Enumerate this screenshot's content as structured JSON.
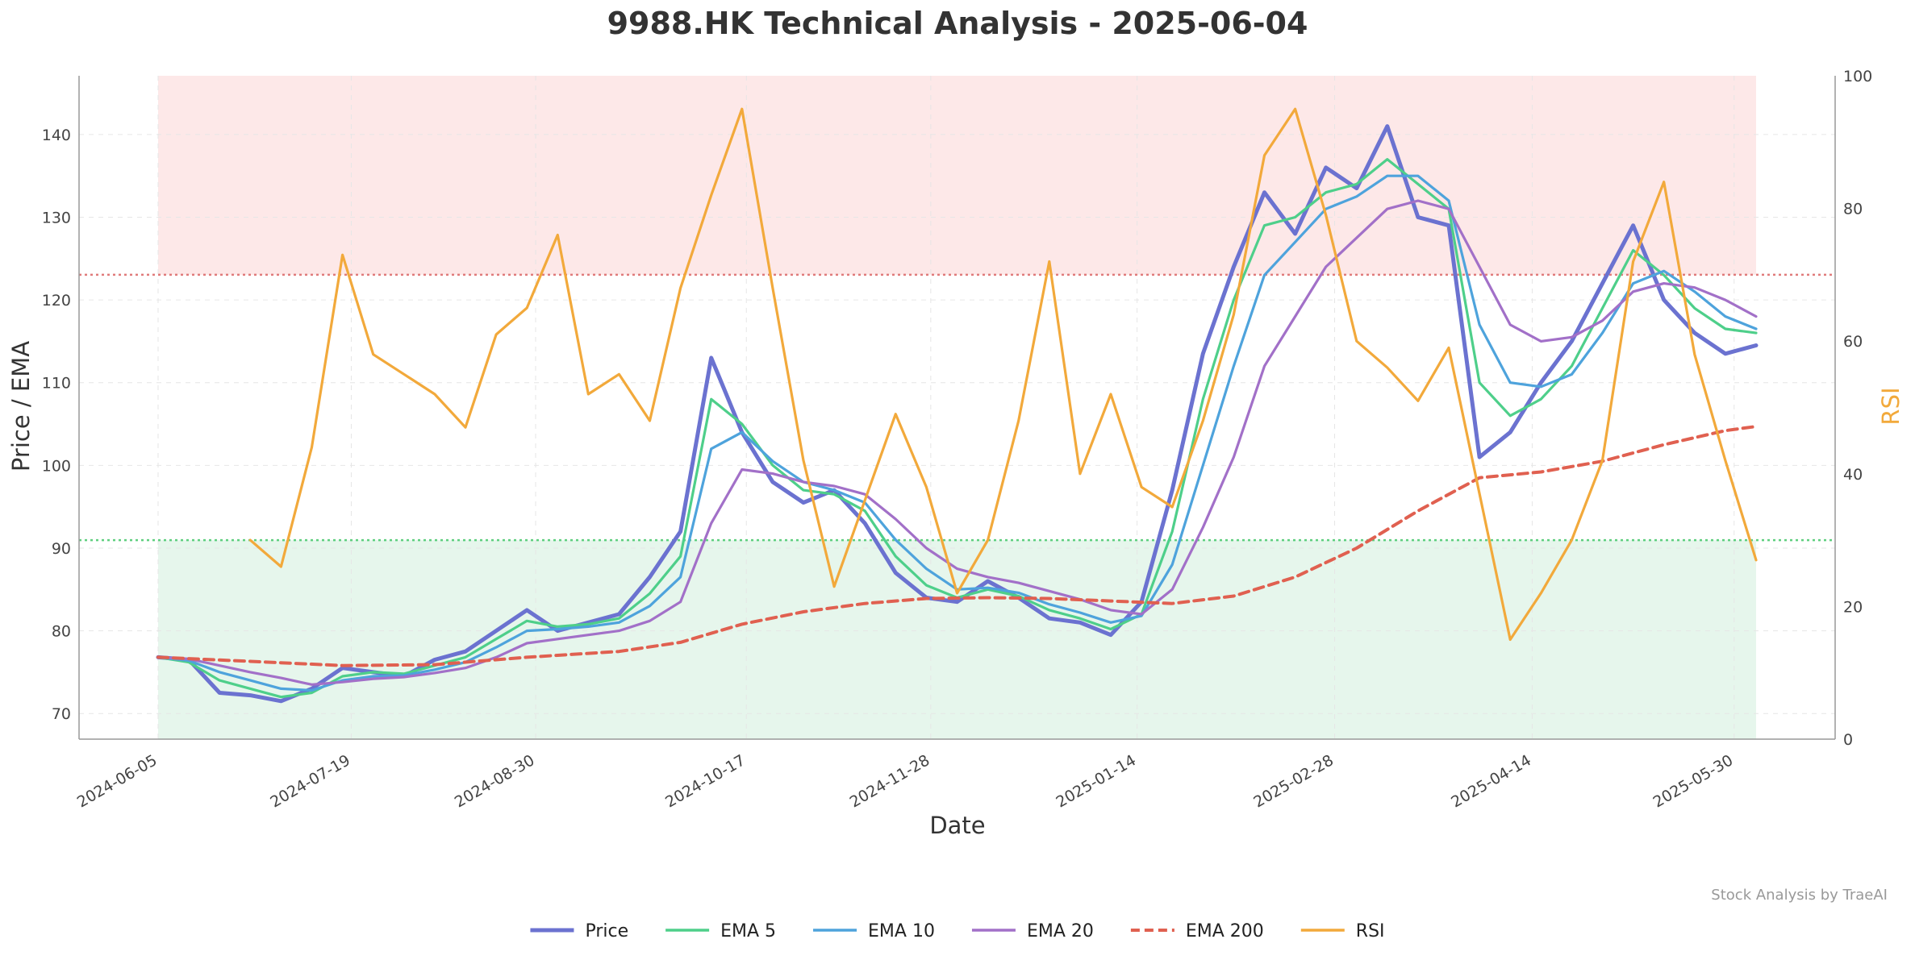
{
  "chart_data": {
    "type": "line",
    "title": "9988.HK Technical Analysis - 2025-06-04",
    "xlabel": "Date",
    "ylabel": "Price / EMA",
    "y2label": "RSI",
    "ylim": [
      66.9,
      147.1
    ],
    "y2lim": [
      0,
      100
    ],
    "yticks": [
      70,
      80,
      90,
      100,
      110,
      120,
      130,
      140
    ],
    "y2ticks": [
      0,
      20,
      40,
      60,
      80,
      100
    ],
    "x_date_range": [
      "2024-06-05",
      "2025-06-04"
    ],
    "xticks": [
      "2024-06-05",
      "2024-07-19",
      "2024-08-30",
      "2024-10-17",
      "2024-11-28",
      "2025-01-14",
      "2025-02-28",
      "2025-04-14",
      "2025-05-30"
    ],
    "rsi_overbought": 70,
    "rsi_oversold": 30,
    "grid": true,
    "legend_position": "bottom-center",
    "watermark": "Stock Analysis by TraeAI",
    "colors": {
      "Price": "#6b72d0",
      "EMA 5": "#4ecf8a",
      "EMA 10": "#4ea3dc",
      "EMA 20": "#a270c8",
      "EMA 200": "#e06050",
      "RSI": "#f2a93b",
      "overbought_zone": "#fde8e8",
      "oversold_zone": "#e6f6ec",
      "overbought_line": "#e07b7b",
      "oversold_line": "#5fcf7f"
    },
    "series": [
      {
        "name": "Price",
        "axis": "left",
        "x": [
          "2024-06-05",
          "2024-06-12",
          "2024-06-19",
          "2024-06-26",
          "2024-07-03",
          "2024-07-10",
          "2024-07-17",
          "2024-07-24",
          "2024-07-31",
          "2024-08-07",
          "2024-08-14",
          "2024-08-21",
          "2024-08-28",
          "2024-09-04",
          "2024-09-11",
          "2024-09-18",
          "2024-09-25",
          "2024-10-02",
          "2024-10-09",
          "2024-10-16",
          "2024-10-23",
          "2024-10-30",
          "2024-11-06",
          "2024-11-13",
          "2024-11-20",
          "2024-11-27",
          "2024-12-04",
          "2024-12-11",
          "2024-12-18",
          "2024-12-25",
          "2025-01-01",
          "2025-01-08",
          "2025-01-15",
          "2025-01-22",
          "2025-01-29",
          "2025-02-05",
          "2025-02-12",
          "2025-02-19",
          "2025-02-26",
          "2025-03-05",
          "2025-03-12",
          "2025-03-19",
          "2025-03-26",
          "2025-04-02",
          "2025-04-09",
          "2025-04-16",
          "2025-04-23",
          "2025-04-30",
          "2025-05-07",
          "2025-05-14",
          "2025-05-21",
          "2025-05-28",
          "2025-06-04"
        ],
        "values": [
          76.8,
          76.5,
          72.5,
          72.2,
          71.5,
          73.0,
          75.5,
          75.0,
          74.5,
          76.5,
          77.5,
          80.0,
          82.5,
          80.0,
          81.0,
          82.0,
          86.5,
          92.0,
          113.0,
          104.0,
          98.0,
          95.5,
          97.0,
          93.0,
          87.0,
          84.0,
          83.5,
          86.0,
          84.0,
          81.5,
          81.0,
          79.5,
          83.5,
          97.0,
          113.5,
          124.0,
          133.0,
          128.0,
          136.0,
          133.5,
          141.0,
          130.0,
          129.0,
          101.0,
          104.0,
          110.0,
          115.0,
          122.0,
          129.0,
          120.0,
          116.0,
          113.5,
          114.5
        ]
      },
      {
        "name": "EMA 5",
        "axis": "left",
        "x": [
          "2024-06-05",
          "2024-06-12",
          "2024-06-19",
          "2024-06-26",
          "2024-07-03",
          "2024-07-10",
          "2024-07-17",
          "2024-07-24",
          "2024-07-31",
          "2024-08-07",
          "2024-08-14",
          "2024-08-21",
          "2024-08-28",
          "2024-09-04",
          "2024-09-11",
          "2024-09-18",
          "2024-09-25",
          "2024-10-02",
          "2024-10-09",
          "2024-10-16",
          "2024-10-23",
          "2024-10-30",
          "2024-11-06",
          "2024-11-13",
          "2024-11-20",
          "2024-11-27",
          "2024-12-04",
          "2024-12-11",
          "2024-12-18",
          "2024-12-25",
          "2025-01-01",
          "2025-01-08",
          "2025-01-15",
          "2025-01-22",
          "2025-01-29",
          "2025-02-05",
          "2025-02-12",
          "2025-02-19",
          "2025-02-26",
          "2025-03-05",
          "2025-03-12",
          "2025-03-19",
          "2025-03-26",
          "2025-04-02",
          "2025-04-09",
          "2025-04-16",
          "2025-04-23",
          "2025-04-30",
          "2025-05-07",
          "2025-05-14",
          "2025-05-21",
          "2025-05-28",
          "2025-06-04"
        ],
        "values": [
          76.8,
          76.2,
          74.0,
          73.0,
          72.0,
          72.5,
          74.5,
          75.0,
          74.8,
          75.8,
          76.8,
          79.0,
          81.2,
          80.5,
          80.8,
          81.5,
          84.5,
          89.0,
          108.0,
          105.0,
          100.0,
          97.0,
          96.5,
          94.5,
          89.0,
          85.5,
          84.0,
          85.0,
          84.2,
          82.5,
          81.5,
          80.2,
          82.0,
          92.0,
          108.0,
          120.0,
          129.0,
          130.0,
          133.0,
          134.0,
          137.0,
          134.0,
          131.0,
          110.0,
          106.0,
          108.0,
          112.0,
          119.0,
          126.0,
          123.0,
          119.0,
          116.5,
          116.0
        ]
      },
      {
        "name": "EMA 10",
        "axis": "left",
        "x": [
          "2024-06-05",
          "2024-06-12",
          "2024-06-19",
          "2024-06-26",
          "2024-07-03",
          "2024-07-10",
          "2024-07-17",
          "2024-07-24",
          "2024-07-31",
          "2024-08-07",
          "2024-08-14",
          "2024-08-21",
          "2024-08-28",
          "2024-09-04",
          "2024-09-11",
          "2024-09-18",
          "2024-09-25",
          "2024-10-02",
          "2024-10-09",
          "2024-10-16",
          "2024-10-23",
          "2024-10-30",
          "2024-11-06",
          "2024-11-13",
          "2024-11-20",
          "2024-11-27",
          "2024-12-04",
          "2024-12-11",
          "2024-12-18",
          "2024-12-25",
          "2025-01-01",
          "2025-01-08",
          "2025-01-15",
          "2025-01-22",
          "2025-01-29",
          "2025-02-05",
          "2025-02-12",
          "2025-02-19",
          "2025-02-26",
          "2025-03-05",
          "2025-03-12",
          "2025-03-19",
          "2025-03-26",
          "2025-04-02",
          "2025-04-09",
          "2025-04-16",
          "2025-04-23",
          "2025-04-30",
          "2025-05-07",
          "2025-05-14",
          "2025-05-21",
          "2025-05-28",
          "2025-06-04"
        ],
        "values": [
          76.8,
          76.4,
          75.0,
          74.0,
          73.0,
          72.8,
          74.0,
          74.5,
          74.6,
          75.3,
          76.2,
          78.0,
          80.0,
          80.2,
          80.5,
          81.0,
          83.0,
          86.5,
          102.0,
          104.0,
          100.5,
          98.0,
          97.0,
          95.5,
          91.0,
          87.5,
          85.0,
          85.2,
          84.6,
          83.2,
          82.2,
          81.0,
          81.8,
          88.0,
          100.0,
          112.0,
          123.0,
          127.0,
          131.0,
          132.5,
          135.0,
          135.0,
          132.0,
          117.0,
          110.0,
          109.5,
          111.0,
          116.0,
          122.0,
          123.5,
          121.0,
          118.0,
          116.5
        ]
      },
      {
        "name": "EMA 20",
        "axis": "left",
        "x": [
          "2024-06-05",
          "2024-06-12",
          "2024-06-19",
          "2024-06-26",
          "2024-07-03",
          "2024-07-10",
          "2024-07-17",
          "2024-07-24",
          "2024-07-31",
          "2024-08-07",
          "2024-08-14",
          "2024-08-21",
          "2024-08-28",
          "2024-09-04",
          "2024-09-11",
          "2024-09-18",
          "2024-09-25",
          "2024-10-02",
          "2024-10-09",
          "2024-10-16",
          "2024-10-23",
          "2024-10-30",
          "2024-11-06",
          "2024-11-13",
          "2024-11-20",
          "2024-11-27",
          "2024-12-04",
          "2024-12-11",
          "2024-12-18",
          "2024-12-25",
          "2025-01-01",
          "2025-01-08",
          "2025-01-15",
          "2025-01-22",
          "2025-01-29",
          "2025-02-05",
          "2025-02-12",
          "2025-02-19",
          "2025-02-26",
          "2025-03-05",
          "2025-03-12",
          "2025-03-19",
          "2025-03-26",
          "2025-04-02",
          "2025-04-09",
          "2025-04-16",
          "2025-04-23",
          "2025-04-30",
          "2025-05-07",
          "2025-05-14",
          "2025-05-21",
          "2025-05-28",
          "2025-06-04"
        ],
        "values": [
          76.8,
          76.6,
          75.8,
          75.0,
          74.3,
          73.5,
          73.8,
          74.2,
          74.4,
          74.9,
          75.5,
          76.8,
          78.5,
          79.0,
          79.5,
          80.0,
          81.2,
          83.5,
          93.0,
          99.5,
          99.0,
          98.0,
          97.5,
          96.5,
          93.5,
          90.0,
          87.5,
          86.5,
          85.8,
          84.8,
          83.8,
          82.5,
          82.0,
          85.0,
          92.5,
          101.0,
          112.0,
          118.0,
          124.0,
          127.5,
          131.0,
          132.0,
          131.0,
          124.0,
          117.0,
          115.0,
          115.5,
          117.5,
          121.0,
          122.0,
          121.5,
          120.0,
          118.0
        ]
      },
      {
        "name": "EMA 200",
        "axis": "left",
        "x": [
          "2024-06-05",
          "2024-06-26",
          "2024-07-17",
          "2024-08-07",
          "2024-08-28",
          "2024-09-18",
          "2024-10-02",
          "2024-10-16",
          "2024-10-30",
          "2024-11-13",
          "2024-11-27",
          "2024-12-11",
          "2024-12-25",
          "2025-01-08",
          "2025-01-22",
          "2025-02-05",
          "2025-02-19",
          "2025-03-05",
          "2025-03-19",
          "2025-04-02",
          "2025-04-16",
          "2025-04-30",
          "2025-05-14",
          "2025-05-28",
          "2025-06-04"
        ],
        "values": [
          76.8,
          76.3,
          75.8,
          75.9,
          76.8,
          77.5,
          78.6,
          80.8,
          82.3,
          83.3,
          83.9,
          84.0,
          83.9,
          83.6,
          83.3,
          84.2,
          86.5,
          90.0,
          94.5,
          98.5,
          99.2,
          100.5,
          102.5,
          104.2,
          104.7
        ]
      },
      {
        "name": "RSI",
        "axis": "right",
        "x": [
          "2024-06-26",
          "2024-07-03",
          "2024-07-10",
          "2024-07-17",
          "2024-07-24",
          "2024-07-31",
          "2024-08-07",
          "2024-08-14",
          "2024-08-21",
          "2024-08-28",
          "2024-09-04",
          "2024-09-11",
          "2024-09-18",
          "2024-09-25",
          "2024-10-02",
          "2024-10-09",
          "2024-10-16",
          "2024-10-23",
          "2024-10-30",
          "2024-11-06",
          "2024-11-13",
          "2024-11-20",
          "2024-11-27",
          "2024-12-04",
          "2024-12-11",
          "2024-12-18",
          "2024-12-25",
          "2025-01-01",
          "2025-01-08",
          "2025-01-15",
          "2025-01-22",
          "2025-01-29",
          "2025-02-05",
          "2025-02-12",
          "2025-02-19",
          "2025-02-26",
          "2025-03-05",
          "2025-03-12",
          "2025-03-19",
          "2025-03-26",
          "2025-04-02",
          "2025-04-09",
          "2025-04-16",
          "2025-04-23",
          "2025-04-30",
          "2025-05-07",
          "2025-05-14",
          "2025-05-21",
          "2025-05-28",
          "2025-06-04"
        ],
        "values": [
          30,
          26,
          44,
          73,
          58,
          55,
          52,
          47,
          61,
          65,
          76,
          52,
          55,
          48,
          68,
          82,
          95,
          68,
          42,
          23,
          36,
          49,
          38,
          22,
          30,
          48,
          72,
          40,
          52,
          38,
          35,
          48,
          64,
          88,
          95,
          79,
          60,
          56,
          51,
          59,
          37,
          15,
          22,
          30,
          42,
          72,
          84,
          58,
          42,
          27
        ]
      }
    ]
  }
}
